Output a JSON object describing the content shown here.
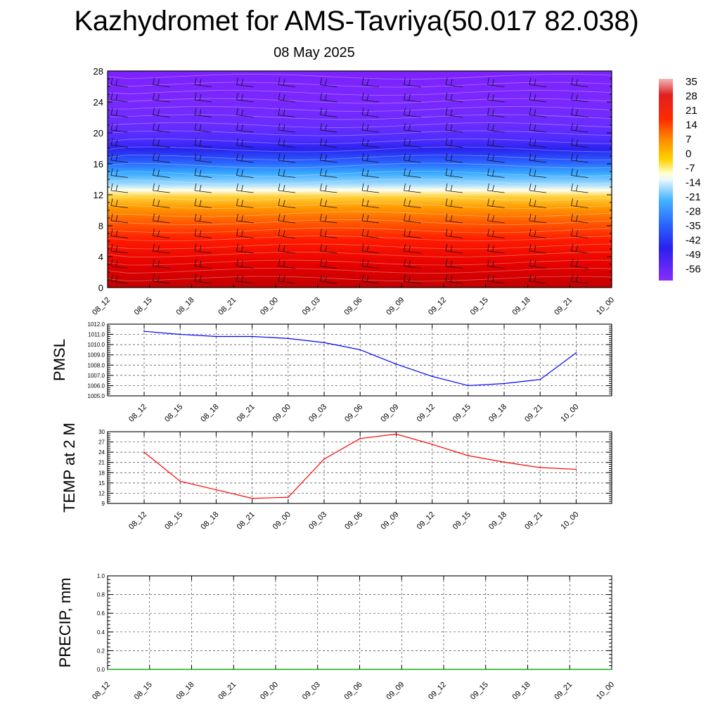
{
  "header": {
    "title": "Kazhydromet for AMS-Tavriya(50.017 82.038)",
    "date": "08 May 2025"
  },
  "colorbar": {
    "labels": [
      "35",
      "28",
      "21",
      "14",
      "7",
      "0",
      "-7",
      "-14",
      "-21",
      "-28",
      "-35",
      "-42",
      "-49",
      "-56"
    ]
  },
  "chart_data": [
    {
      "type": "heatmap",
      "name": "vertical-cross-section",
      "x": [
        "08_12",
        "08_15",
        "08_18",
        "08_21",
        "09_00",
        "09_03",
        "09_06",
        "09_09",
        "09_12",
        "09_15",
        "09_18",
        "09_21",
        "10_00"
      ],
      "yticks": [
        0,
        4,
        8,
        12,
        16,
        20,
        24,
        28
      ],
      "ylim": [
        0,
        28
      ],
      "bands": [
        {
          "y0": 0,
          "y1": 3,
          "value": 28
        },
        {
          "y0": 3,
          "y1": 6,
          "value": 21
        },
        {
          "y0": 6,
          "y1": 9,
          "value": 14
        },
        {
          "y0": 9,
          "y1": 11,
          "value": 7
        },
        {
          "y0": 11,
          "y1": 12.8,
          "value": 0
        },
        {
          "y0": 12.8,
          "y1": 14,
          "value": -14
        },
        {
          "y0": 14,
          "y1": 16,
          "value": -28
        },
        {
          "y0": 16,
          "y1": 18.5,
          "value": -42
        },
        {
          "y0": 18.5,
          "y1": 20,
          "value": -56
        },
        {
          "y0": 20,
          "y1": 28,
          "value": -49
        }
      ],
      "colorbar_ticks": [
        35,
        28,
        21,
        14,
        7,
        0,
        -7,
        -14,
        -21,
        -28,
        -35,
        -42,
        -49,
        -56
      ],
      "colors": {
        "warm": "#cc0000",
        "hot": "#ff2200",
        "orange": "#ff8800",
        "yellow": "#ffee33",
        "white": "#ffffff",
        "cyan": "#33bbff",
        "blue": "#2233ee",
        "violet": "#7a22ff"
      }
    },
    {
      "type": "line",
      "name": "PMSL",
      "ylabel": "PMSL",
      "x": [
        "08_12",
        "08_15",
        "08_18",
        "08_21",
        "09_00",
        "09_03",
        "09_06",
        "09_09",
        "09_12",
        "09_15",
        "09_18",
        "09_21",
        "10_00"
      ],
      "values": [
        1011.3,
        1011.0,
        1010.8,
        1010.8,
        1010.6,
        1010.2,
        1009.5,
        1008.1,
        1006.9,
        1006.0,
        1006.2,
        1006.6,
        1009.2
      ],
      "yticks": [
        "1005.0",
        "1006.0",
        "1007.0",
        "1008.0",
        "1009.0",
        "1010.0",
        "1011.0",
        "1012.0"
      ],
      "ylim": [
        1005,
        1012
      ],
      "color": "#0000ff"
    },
    {
      "type": "line",
      "name": "TEMP at 2 M",
      "ylabel": "TEMP at 2 M",
      "x": [
        "08_12",
        "08_15",
        "08_18",
        "08_21",
        "09_00",
        "09_03",
        "09_06",
        "09_09",
        "09_12",
        "09_15",
        "09_18",
        "09_21",
        "10_00"
      ],
      "values": [
        24.0,
        15.5,
        13.0,
        10.5,
        10.8,
        22.0,
        28.0,
        29.3,
        26.3,
        23.0,
        21.1,
        19.5,
        19.0
      ],
      "yticks": [
        "9",
        "12",
        "15",
        "18",
        "21",
        "24",
        "27",
        "30"
      ],
      "ylim": [
        9,
        30
      ],
      "color": "#ff0000"
    },
    {
      "type": "line",
      "name": "PRECIP, mm",
      "ylabel": "PRECIP, mm",
      "x": [
        "08_12",
        "08_15",
        "08_18",
        "08_21",
        "09_00",
        "09_03",
        "09_06",
        "09_09",
        "09_12",
        "09_15",
        "09_18",
        "09_21",
        "10_00"
      ],
      "values": [
        0,
        0,
        0,
        0,
        0,
        0,
        0,
        0,
        0,
        0,
        0,
        0,
        0
      ],
      "yticks": [
        "0.0",
        "0.2",
        "0.4",
        "0.6",
        "0.8",
        "1.0"
      ],
      "ylim": [
        0,
        1
      ],
      "color": "#00aa00"
    }
  ]
}
